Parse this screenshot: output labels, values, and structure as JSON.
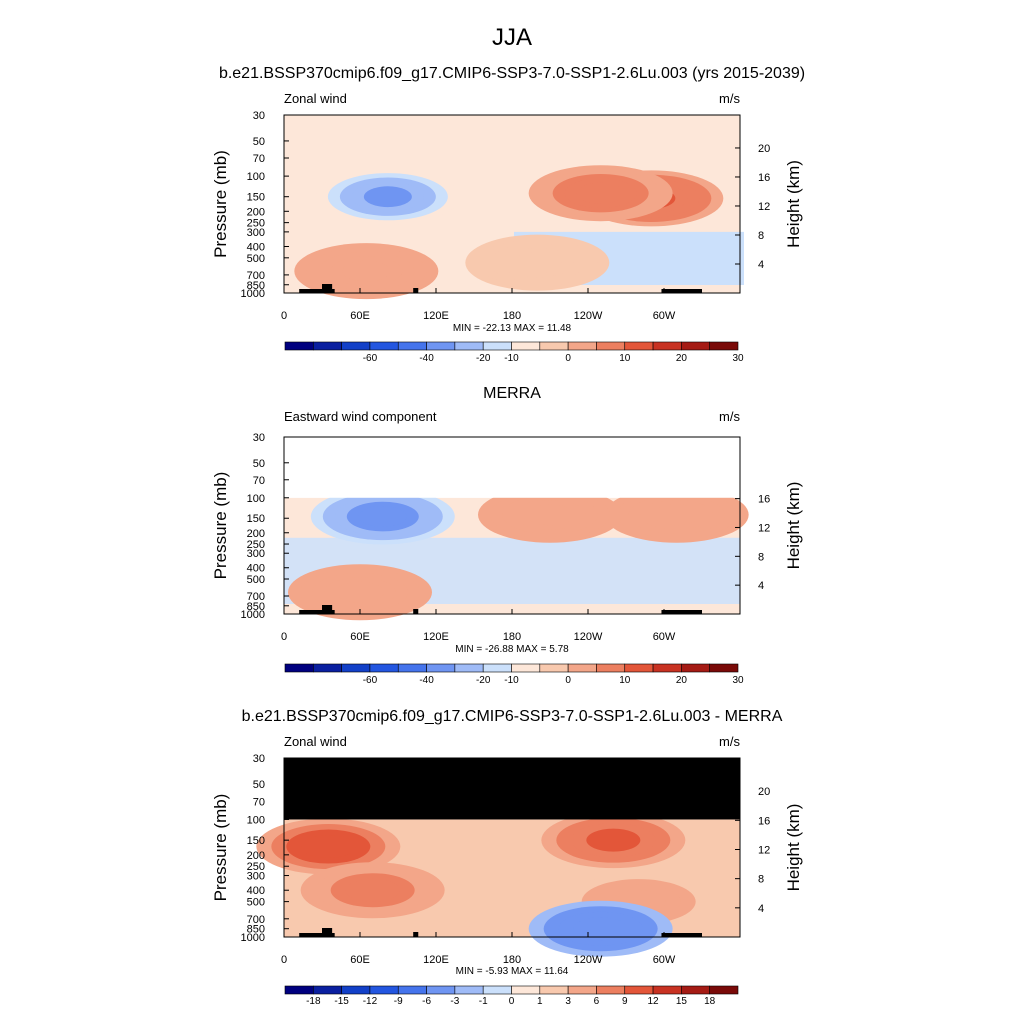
{
  "figure": {
    "title": "JJA"
  },
  "chart_data": [
    {
      "type": "heatmap",
      "subtitle": "b.e21.BSSP370cmip6.f09_g17.CMIP6-SSP3-7.0-SSP1-2.6Lu.003 (yrs 2015-2039)",
      "left_label": "Zonal wind",
      "right_label": "m/s",
      "ylabel": "Pressure (mb)",
      "ylabel_right": "Height (km)",
      "x_ticks": [
        "0",
        "60E",
        "120E",
        "180",
        "120W",
        "60W"
      ],
      "x_tick_lon": [
        0,
        60,
        120,
        180,
        240,
        300
      ],
      "xlim": [
        0,
        360
      ],
      "y_ticks": [
        "30",
        "50",
        "70",
        "100",
        "150",
        "200",
        "250",
        "300",
        "400",
        "500",
        "700",
        "850",
        "1000"
      ],
      "y_tick_p": [
        30,
        50,
        70,
        100,
        150,
        200,
        250,
        300,
        400,
        500,
        700,
        850,
        1000
      ],
      "ylim_mb": [
        1000,
        30
      ],
      "height_ticks": [
        "20",
        "16",
        "12",
        "8",
        "4"
      ],
      "height_km": [
        20,
        16,
        12,
        8,
        4
      ],
      "top_mb": 30,
      "min_max_text": "MIN = -22.13  MAX =  11.48",
      "colorbar_labels": [
        "-60",
        "-40",
        "-20",
        "-10",
        "0",
        "10",
        "20",
        "30"
      ],
      "colorbar_label_bounds": [
        3,
        5,
        7,
        8,
        10,
        12,
        14,
        16
      ],
      "features": [
        {
          "lon": 82,
          "p": 150,
          "value": -22
        },
        {
          "lon": 290,
          "p": 155,
          "value": 11
        },
        {
          "lon": 250,
          "p": 140,
          "value": 8
        },
        {
          "lon": 65,
          "p": 650,
          "value": 5
        },
        {
          "lon": 200,
          "p": 550,
          "value": -4
        }
      ]
    },
    {
      "type": "heatmap",
      "subtitle": "MERRA",
      "left_label": "Eastward wind component",
      "right_label": "m/s",
      "ylabel": "Pressure (mb)",
      "ylabel_right": "Height (km)",
      "x_ticks": [
        "0",
        "60E",
        "120E",
        "180",
        "120W",
        "60W"
      ],
      "x_tick_lon": [
        0,
        60,
        120,
        180,
        240,
        300
      ],
      "xlim": [
        0,
        360
      ],
      "y_ticks": [
        "30",
        "50",
        "70",
        "100",
        "150",
        "200",
        "250",
        "300",
        "400",
        "500",
        "700",
        "850",
        "1000"
      ],
      "y_tick_p": [
        30,
        50,
        70,
        100,
        150,
        200,
        250,
        300,
        400,
        500,
        700,
        850,
        1000
      ],
      "ylim_mb": [
        1000,
        30
      ],
      "height_ticks": [
        "16",
        "12",
        "8",
        "4"
      ],
      "height_km": [
        16,
        12,
        8,
        4
      ],
      "top_mb": 100,
      "min_max_text": "MIN = -26.88  MAX =   5.78",
      "colorbar_labels": [
        "-60",
        "-40",
        "-20",
        "-10",
        "0",
        "10",
        "20",
        "30"
      ],
      "colorbar_label_bounds": [
        3,
        5,
        7,
        8,
        10,
        12,
        14,
        16
      ],
      "features": [
        {
          "lon": 78,
          "p": 145,
          "value": -26
        },
        {
          "lon": 310,
          "p": 140,
          "value": 5
        },
        {
          "lon": 210,
          "p": 140,
          "value": 4
        },
        {
          "lon": 60,
          "p": 650,
          "value": 5
        }
      ]
    },
    {
      "type": "heatmap",
      "subtitle": "b.e21.BSSP370cmip6.f09_g17.CMIP6-SSP3-7.0-SSP1-2.6Lu.003 - MERRA",
      "left_label": "Zonal wind",
      "right_label": "m/s",
      "ylabel": "Pressure (mb)",
      "ylabel_right": "Height (km)",
      "x_ticks": [
        "0",
        "60E",
        "120E",
        "180",
        "120W",
        "60W"
      ],
      "x_tick_lon": [
        0,
        60,
        120,
        180,
        240,
        300
      ],
      "xlim": [
        0,
        360
      ],
      "y_ticks": [
        "30",
        "50",
        "70",
        "100",
        "150",
        "200",
        "250",
        "300",
        "400",
        "500",
        "700",
        "850",
        "1000"
      ],
      "y_tick_p": [
        30,
        50,
        70,
        100,
        150,
        200,
        250,
        300,
        400,
        500,
        700,
        850,
        1000
      ],
      "ylim_mb": [
        1000,
        30
      ],
      "height_ticks": [
        "20",
        "16",
        "12",
        "8",
        "4"
      ],
      "height_km": [
        20,
        16,
        12,
        8,
        4
      ],
      "top_mb": 100,
      "min_max_text": "MIN =  -5.93  MAX =  11.64",
      "colorbar_labels": [
        "-18",
        "-15",
        "-12",
        "-9",
        "-6",
        "-3",
        "-1",
        "0",
        "1",
        "3",
        "6",
        "9",
        "12",
        "15",
        "18"
      ],
      "colorbar_label_bounds": [
        1,
        2,
        3,
        4,
        5,
        6,
        7,
        8,
        9,
        10,
        11,
        12,
        13,
        14,
        15
      ],
      "features": [
        {
          "lon": 35,
          "p": 170,
          "value": 11
        },
        {
          "lon": 260,
          "p": 150,
          "value": 10
        },
        {
          "lon": 70,
          "p": 400,
          "value": 8
        },
        {
          "lon": 280,
          "p": 500,
          "value": 6
        },
        {
          "lon": 250,
          "p": 850,
          "value": -5
        }
      ]
    }
  ],
  "colorbar_colors": [
    "#00007f",
    "#0a1fa0",
    "#1240c8",
    "#2356e0",
    "#4574ec",
    "#6f95f2",
    "#9fbbf7",
    "#cbe0fb",
    "#fde7d9",
    "#f8c9ae",
    "#f3a689",
    "#ec7f60",
    "#e35639",
    "#c83222",
    "#a51b14",
    "#7a0a08"
  ],
  "terrain_color": "#000000"
}
